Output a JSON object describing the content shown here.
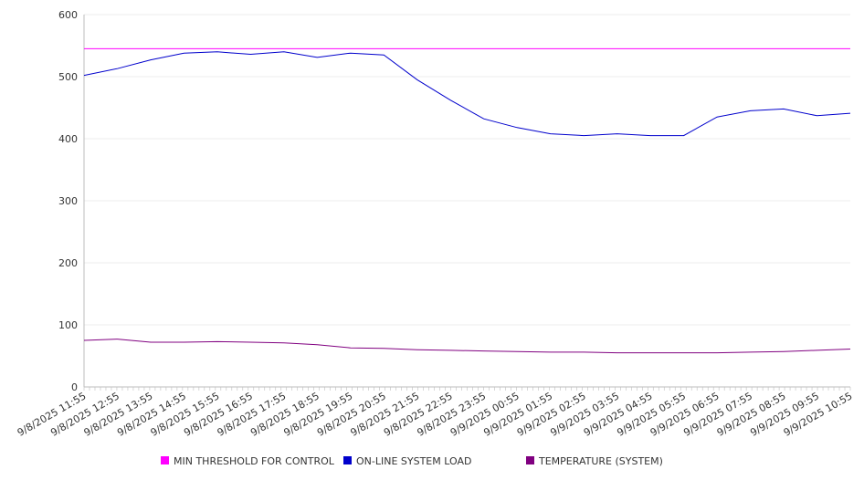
{
  "chart_data": {
    "type": "line",
    "title": "",
    "xlabel": "",
    "ylabel": "",
    "ylim": [
      0,
      600
    ],
    "yticks": [
      0,
      100,
      200,
      300,
      400,
      500,
      600
    ],
    "grid": "horizontal",
    "legend_position": "bottom",
    "x": [
      "9/8/2025 11:55",
      "9/8/2025 12:55",
      "9/8/2025 13:55",
      "9/8/2025 14:55",
      "9/8/2025 15:55",
      "9/8/2025 16:55",
      "9/8/2025 17:55",
      "9/8/2025 18:55",
      "9/8/2025 19:55",
      "9/8/2025 20:55",
      "9/8/2025 21:55",
      "9/8/2025 22:55",
      "9/8/2025 23:55",
      "9/9/2025 00:55",
      "9/9/2025 01:55",
      "9/9/2025 02:55",
      "9/9/2025 03:55",
      "9/9/2025 04:55",
      "9/9/2025 05:55",
      "9/9/2025 06:55",
      "9/9/2025 07:55",
      "9/9/2025 08:55",
      "9/9/2025 09:55",
      "9/9/2025 10:55"
    ],
    "series": [
      {
        "name": "MIN THRESHOLD FOR CONTROL",
        "color": "#ff00ff",
        "values": [
          545,
          545,
          545,
          545,
          545,
          545,
          545,
          545,
          545,
          545,
          545,
          545,
          545,
          545,
          545,
          545,
          545,
          545,
          545,
          545,
          545,
          545,
          545,
          545
        ]
      },
      {
        "name": "ON-LINE SYSTEM LOAD",
        "color": "#0000cc",
        "values": [
          502,
          513,
          527,
          538,
          540,
          536,
          540,
          531,
          538,
          535,
          495,
          462,
          432,
          418,
          408,
          405,
          408,
          405,
          405,
          435,
          445,
          448,
          437,
          441
        ]
      },
      {
        "name": "TEMPERATURE (SYSTEM)",
        "color": "#800080",
        "values": [
          75,
          77,
          72,
          72,
          73,
          72,
          71,
          68,
          63,
          62,
          60,
          59,
          58,
          57,
          56,
          56,
          55,
          55,
          55,
          55,
          56,
          57,
          59,
          61
        ]
      }
    ]
  }
}
